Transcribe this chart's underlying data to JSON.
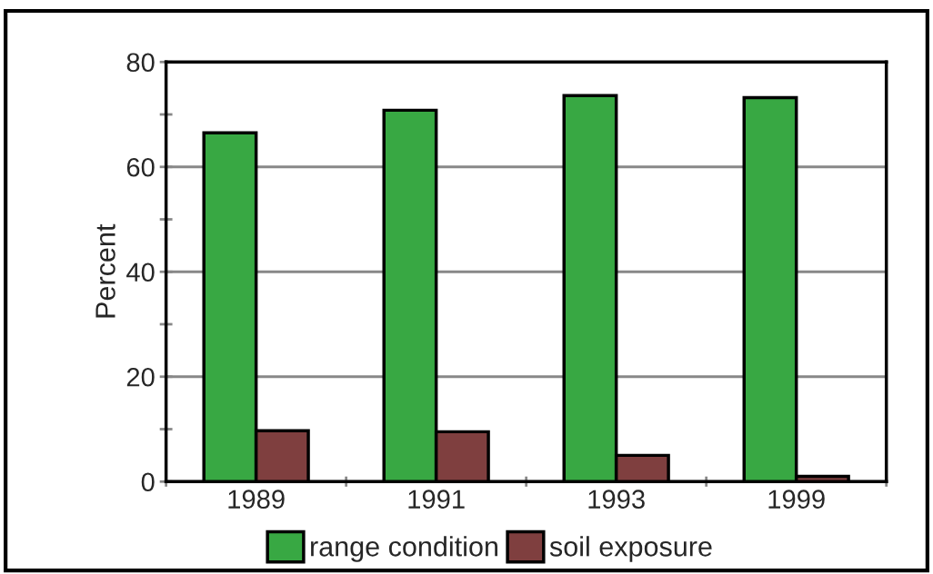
{
  "chart_data": {
    "type": "bar",
    "ylabel": "Percent",
    "categories": [
      "1989",
      "1991",
      "1993",
      "1999"
    ],
    "series": [
      {
        "name": "range condition",
        "color": "#38a843",
        "values": [
          66.5,
          70.8,
          73.6,
          73.2
        ]
      },
      {
        "name": "soil exposure",
        "color": "#7f3f3f",
        "values": [
          9.7,
          9.5,
          5.0,
          1.0
        ]
      }
    ],
    "ylim": [
      0,
      80
    ],
    "yticks": [
      0,
      {
        "value": 10,
        "label": null
      },
      20,
      {
        "value": 30,
        "label": null
      },
      40,
      {
        "value": 50,
        "label": null
      },
      60,
      {
        "value": 70,
        "label": null
      },
      80
    ],
    "grid": "y",
    "legend": "bottom"
  }
}
